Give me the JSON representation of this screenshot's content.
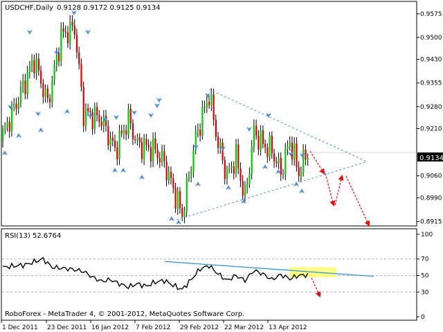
{
  "chart_data": [
    {
      "type": "candlestick",
      "symbol": "USDCHF,Daily",
      "header_values": "0.9128 0.9172 0.9125 0.9134",
      "current_price": "0.9134",
      "y_tick_labels": [
        "0.9575",
        "0.9500",
        "0.9430",
        "0.9355",
        "0.9280",
        "0.9210",
        "0.9060",
        "0.8990",
        "0.8915"
      ],
      "ylim": [
        0.8905,
        0.961
      ],
      "x_tick_labels": [
        "1 Dec 2011",
        "23 Dec 2011",
        "16 Jan 2012",
        "7 Feb 2012",
        "29 Feb 2012",
        "22 Mar 2012",
        "13 Apr 2012"
      ],
      "triangle": [
        [
          0.9335,
          0.9105
        ],
        [
          0.892,
          0.9105
        ]
      ],
      "forecast_arrows": 4,
      "colors": {
        "bull": "#00cc00",
        "bear": "#e00000",
        "fractal": "#4a90e2",
        "trend": "#1e90ff",
        "forecast": "#ff0000"
      }
    },
    {
      "type": "line",
      "indicator": "RSI(13) 52.6764",
      "y_tick_labels": [
        "100",
        "70",
        "50",
        "30",
        "0"
      ],
      "ylim": [
        0,
        100
      ],
      "levels": [
        70,
        50,
        30
      ],
      "current_value": 52.6764,
      "colors": {
        "line": "#000000",
        "trend": "#1e90ff",
        "highlight": "#ffff66",
        "forecast": "#ff0000"
      }
    }
  ],
  "footer": {
    "copyright": "RoboForex - MetaTrader 4, © 2001-2012, MetaQuotes Software Corp."
  }
}
